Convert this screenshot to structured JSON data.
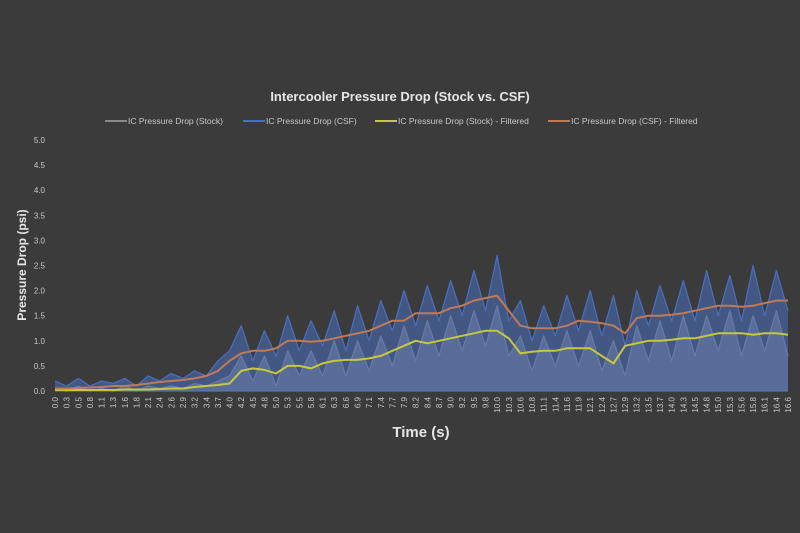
{
  "chart_data": {
    "type": "line",
    "title": "Intercooler Pressure Drop (Stock vs. CSF)",
    "xlabel": "Time (s)",
    "ylabel": "Pressure Drop (psi)",
    "ylim": [
      0,
      5
    ],
    "yticks": [
      "0.0",
      "0.5",
      "1.0",
      "1.5",
      "2.0",
      "2.5",
      "3.0",
      "3.5",
      "4.0",
      "4.5",
      "5.0"
    ],
    "grid": false,
    "legend_position": "top",
    "x": [
      "0.0",
      "0.3",
      "0.5",
      "0.8",
      "1.1",
      "1.3",
      "1.6",
      "1.8",
      "2.1",
      "2.4",
      "2.6",
      "2.9",
      "3.2",
      "3.4",
      "3.7",
      "4.0",
      "4.2",
      "4.5",
      "4.8",
      "5.0",
      "5.3",
      "5.5",
      "5.8",
      "6.1",
      "6.3",
      "6.6",
      "6.9",
      "7.1",
      "7.4",
      "7.7",
      "7.9",
      "8.2",
      "8.4",
      "8.7",
      "9.0",
      "9.2",
      "9.5",
      "9.8",
      "10.0",
      "10.3",
      "10.6",
      "10.8",
      "11.1",
      "11.4",
      "11.6",
      "11.9",
      "12.1",
      "12.4",
      "12.7",
      "12.9",
      "13.2",
      "13.5",
      "13.7",
      "14.0",
      "14.3",
      "14.5",
      "14.8",
      "15.0",
      "15.3",
      "15.6",
      "15.8",
      "16.1",
      "16.4",
      "16.6"
    ],
    "series": [
      {
        "name": "IC Pressure Drop (Stock)",
        "color": "#8a8a8a",
        "values": [
          0.05,
          0,
          0.1,
          0,
          0.05,
          0,
          0.1,
          0,
          0.1,
          0.05,
          0.1,
          0.05,
          0.15,
          0.1,
          0.2,
          0.3,
          0.7,
          0.2,
          0.7,
          0.1,
          0.8,
          0.3,
          0.8,
          0.3,
          1.0,
          0.3,
          1.0,
          0.4,
          1.1,
          0.5,
          1.3,
          0.6,
          1.4,
          0.7,
          1.5,
          0.8,
          1.6,
          0.9,
          1.7,
          0.7,
          1.1,
          0.4,
          1.1,
          0.5,
          1.2,
          0.5,
          1.2,
          0.4,
          1.0,
          0.3,
          1.3,
          0.6,
          1.4,
          0.6,
          1.5,
          0.7,
          1.5,
          0.8,
          1.6,
          0.7,
          1.5,
          0.8,
          1.6,
          0.7
        ]
      },
      {
        "name": "IC Pressure Drop (CSF)",
        "color": "#4a6fc0",
        "values": [
          0.2,
          0.1,
          0.25,
          0.1,
          0.2,
          0.15,
          0.25,
          0.1,
          0.3,
          0.2,
          0.35,
          0.25,
          0.4,
          0.3,
          0.6,
          0.8,
          1.3,
          0.6,
          1.2,
          0.7,
          1.5,
          0.8,
          1.4,
          0.9,
          1.6,
          0.8,
          1.7,
          1.0,
          1.8,
          1.2,
          2.0,
          1.3,
          2.1,
          1.4,
          2.2,
          1.5,
          2.4,
          1.6,
          2.7,
          1.4,
          1.8,
          1.0,
          1.7,
          1.1,
          1.9,
          1.2,
          2.0,
          1.1,
          1.9,
          0.9,
          2.0,
          1.3,
          2.1,
          1.4,
          2.2,
          1.4,
          2.4,
          1.5,
          2.3,
          1.4,
          2.5,
          1.5,
          2.4,
          1.6
        ]
      },
      {
        "name": "IC Pressure Drop (Stock) - Filtered",
        "color": "#c8c83a",
        "values": [
          0.02,
          0.02,
          0.02,
          0.02,
          0.02,
          0.02,
          0.03,
          0.03,
          0.03,
          0.04,
          0.05,
          0.05,
          0.08,
          0.1,
          0.12,
          0.15,
          0.4,
          0.45,
          0.42,
          0.35,
          0.5,
          0.5,
          0.45,
          0.55,
          0.6,
          0.62,
          0.62,
          0.65,
          0.7,
          0.8,
          0.9,
          1.0,
          0.95,
          1.0,
          1.05,
          1.1,
          1.15,
          1.2,
          1.2,
          1.05,
          0.75,
          0.78,
          0.8,
          0.8,
          0.85,
          0.85,
          0.85,
          0.7,
          0.55,
          0.9,
          0.95,
          1.0,
          1.0,
          1.02,
          1.05,
          1.05,
          1.1,
          1.15,
          1.15,
          1.15,
          1.12,
          1.15,
          1.15,
          1.12
        ]
      },
      {
        "name": "IC Pressure Drop (CSF) - Filtered",
        "color": "#c07a55",
        "values": [
          0.05,
          0.05,
          0.06,
          0.07,
          0.08,
          0.1,
          0.1,
          0.12,
          0.15,
          0.18,
          0.2,
          0.22,
          0.25,
          0.3,
          0.4,
          0.6,
          0.75,
          0.8,
          0.8,
          0.85,
          1.0,
          1.0,
          0.98,
          1.0,
          1.05,
          1.1,
          1.15,
          1.2,
          1.3,
          1.4,
          1.4,
          1.55,
          1.55,
          1.55,
          1.65,
          1.7,
          1.8,
          1.85,
          1.9,
          1.6,
          1.3,
          1.25,
          1.25,
          1.25,
          1.3,
          1.4,
          1.38,
          1.35,
          1.3,
          1.15,
          1.45,
          1.5,
          1.5,
          1.52,
          1.55,
          1.6,
          1.65,
          1.7,
          1.7,
          1.68,
          1.7,
          1.75,
          1.8,
          1.8
        ]
      }
    ]
  }
}
